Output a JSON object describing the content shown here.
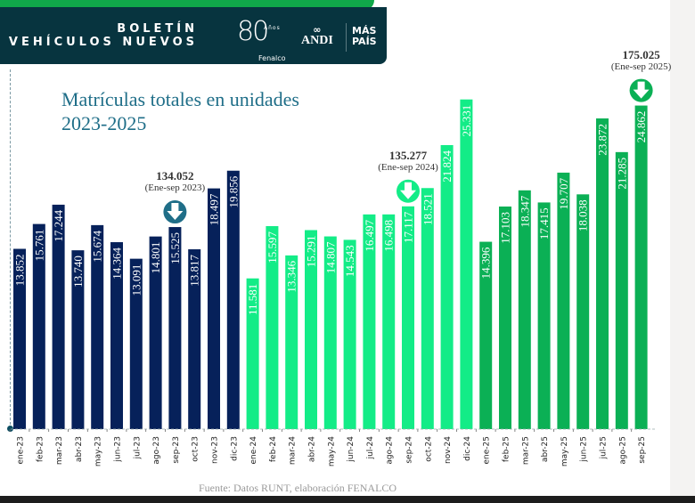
{
  "header": {
    "line1": "BOLETÍN",
    "line2": "VEHÍCULOS NUEVOS",
    "logo_fenalco_number": "80",
    "logo_fenalco_years": "Años",
    "logo_fenalco_name": "Fenalco",
    "logo_andi_icon": "∞",
    "logo_andi_name": "ANDI",
    "logo_maspais_line1": "MÁS",
    "logo_maspais_line2": "PAÍS"
  },
  "chart_data": {
    "type": "bar",
    "title": "Matrículas totales en unidades",
    "subtitle": "2023-2025",
    "xlabel": "",
    "ylabel": "",
    "ylim": [
      0,
      27500
    ],
    "grid": false,
    "source": "Fuente: Datos RUNT, elaboración FENALCO",
    "categories": [
      "ene-23",
      "feb-23",
      "mar-23",
      "abr-23",
      "may-23",
      "jun-23",
      "jul-23",
      "ago-23",
      "sep-23",
      "oct-23",
      "nov-23",
      "dic-23",
      "ene-24",
      "feb-24",
      "mar-24",
      "abr-24",
      "may-24",
      "jun-24",
      "jul-24",
      "ago-24",
      "sep-24",
      "oct-24",
      "nov-24",
      "dic-24",
      "ene-25",
      "feb-25",
      "mar-25",
      "abr-25",
      "may-25",
      "jun-25",
      "jul-25",
      "ago-25",
      "sep-25"
    ],
    "series": [
      {
        "name": "2023",
        "color": "#06215a",
        "values": [
          13852,
          15761,
          17244,
          13740,
          15674,
          14364,
          13091,
          14801,
          15525,
          13817,
          18497,
          19856
        ]
      },
      {
        "name": "2024",
        "color": "#13ec87",
        "values": [
          11581,
          15597,
          13346,
          15291,
          14807,
          14543,
          16497,
          16498,
          17117,
          18521,
          21824,
          25331
        ]
      },
      {
        "name": "2025",
        "color": "#0bb055",
        "values": [
          14396,
          17103,
          18347,
          17415,
          19707,
          18038,
          23872,
          21285,
          24862
        ]
      }
    ],
    "data_labels": [
      "13.852",
      "15.761",
      "17.244",
      "13.740",
      "15.674",
      "14.364",
      "13.091",
      "14.801",
      "15.525",
      "13.817",
      "18.497",
      "19.856",
      "11.581",
      "15.597",
      "13.346",
      "15.291",
      "14.807",
      "14.543",
      "16.497",
      "16.498",
      "17.117",
      "18.521",
      "21.824",
      "25.331",
      "14.396",
      "17.103",
      "18.347",
      "17.415",
      "19.707",
      "18.038",
      "23.872",
      "21.285",
      "24.862"
    ],
    "annotations": [
      {
        "category": "sep-23",
        "value": "134.052",
        "period": "(Ene-sep 2023)",
        "arrow_color": "#1f6e88"
      },
      {
        "category": "sep-24",
        "value": "135.277",
        "period": "(Ene-sep 2024)",
        "arrow_color": "#13ec87"
      },
      {
        "category": "sep-25",
        "value": "175.025",
        "period": "(Ene-sep 2025)",
        "arrow_color": "#0bb055"
      }
    ]
  }
}
